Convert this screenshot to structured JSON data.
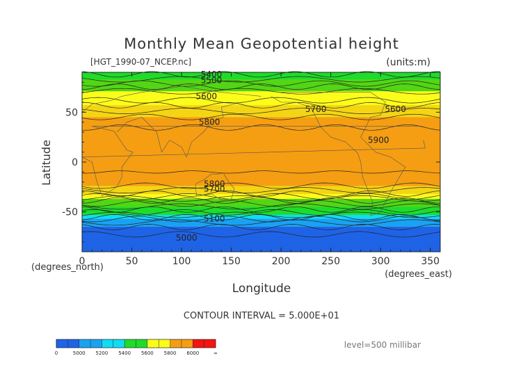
{
  "chart_data": {
    "type": "heatmap",
    "title": "Monthly Mean Geopotential height",
    "file_label": "[HGT_1990-07_NCEP.nc]",
    "units_label": "(units:m)",
    "xlabel": "Longitude",
    "ylabel": "Latitude",
    "x_unit_label": "(degrees_east)",
    "y_unit_label": "(degrees_north)",
    "xlim": [
      0,
      360
    ],
    "ylim": [
      -90,
      90
    ],
    "x_ticks": [
      0,
      50,
      100,
      150,
      200,
      250,
      300,
      350
    ],
    "y_ticks": [
      50,
      0,
      -50
    ],
    "contour_interval_text": "CONTOUR INTERVAL = 5.000E+01",
    "level_text": "level=500 millibar",
    "color_bands": [
      {
        "min": 0,
        "max": 5100,
        "color": "#1f63e6"
      },
      {
        "min": 5100,
        "max": 5200,
        "color": "#1aa2f2"
      },
      {
        "min": 5200,
        "max": 5300,
        "color": "#10dcf4"
      },
      {
        "min": 5300,
        "max": 5450,
        "color": "#1edc2a"
      },
      {
        "min": 5450,
        "max": 5600,
        "color": "#52d615"
      },
      {
        "min": 5600,
        "max": 5700,
        "color": "#fcfc1a"
      },
      {
        "min": 5700,
        "max": 5800,
        "color": "#f4d514"
      },
      {
        "min": 5800,
        "max": 6000,
        "color": "#f59e13"
      },
      {
        "min": 6000,
        "max": 99999,
        "color": "#f51411"
      }
    ],
    "zonal_profile": [
      {
        "lat": 90,
        "value": 5380
      },
      {
        "lat": 86,
        "value": 5420
      },
      {
        "lat": 80,
        "value": 5480
      },
      {
        "lat": 75,
        "value": 5560
      },
      {
        "lat": 70,
        "value": 5610
      },
      {
        "lat": 62,
        "value": 5650
      },
      {
        "lat": 56,
        "value": 5710
      },
      {
        "lat": 50,
        "value": 5760
      },
      {
        "lat": 44,
        "value": 5810
      },
      {
        "lat": 30,
        "value": 5870
      },
      {
        "lat": 0,
        "value": 5870
      },
      {
        "lat": -20,
        "value": 5830
      },
      {
        "lat": -25,
        "value": 5790
      },
      {
        "lat": -30,
        "value": 5730
      },
      {
        "lat": -35,
        "value": 5640
      },
      {
        "lat": -38,
        "value": 5560
      },
      {
        "lat": -44,
        "value": 5460
      },
      {
        "lat": -50,
        "value": 5360
      },
      {
        "lat": -55,
        "value": 5260
      },
      {
        "lat": -58,
        "value": 5180
      },
      {
        "lat": -64,
        "value": 5110
      },
      {
        "lat": -70,
        "value": 5060
      },
      {
        "lat": -80,
        "value": 5020
      },
      {
        "lat": -90,
        "value": 5000
      }
    ],
    "contour_labels": [
      {
        "text": "5400",
        "lon": 130,
        "lat": 88
      },
      {
        "text": "5500",
        "lon": 130,
        "lat": 82
      },
      {
        "text": "5600",
        "lon": 125,
        "lat": 66
      },
      {
        "text": "5700",
        "lon": 235,
        "lat": 53
      },
      {
        "text": "5600",
        "lon": 315,
        "lat": 53
      },
      {
        "text": "5800",
        "lon": 128,
        "lat": 40
      },
      {
        "text": "5900",
        "lon": 298,
        "lat": 22
      },
      {
        "text": "5800",
        "lon": 133,
        "lat": -22
      },
      {
        "text": "5700",
        "lon": 133,
        "lat": -27
      },
      {
        "text": "5100",
        "lon": 133,
        "lat": -57
      },
      {
        "text": "5000",
        "lon": 105,
        "lat": -76
      }
    ],
    "colorbar": {
      "tick_labels": [
        "0",
        "5000",
        "5200",
        "5400",
        "5600",
        "5800",
        "6000",
        "∞"
      ],
      "colors": [
        "#1f63e6",
        "#1f63e6",
        "#1aa2f2",
        "#1aa2f2",
        "#10dcf4",
        "#10dcf4",
        "#1edc2a",
        "#1edc2a",
        "#fcfc1a",
        "#fcfc1a",
        "#f59e13",
        "#f59e13",
        "#f51411",
        "#f51411"
      ]
    },
    "grid": false
  }
}
